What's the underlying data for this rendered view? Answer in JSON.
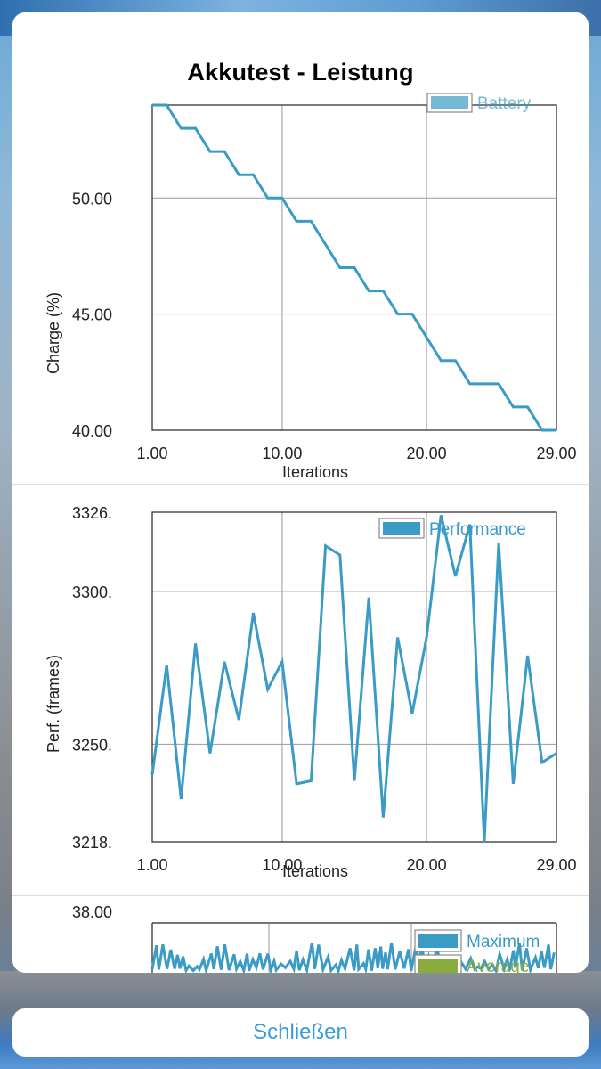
{
  "sheet": {
    "title": "Akkutest - Leistung"
  },
  "close_button": {
    "label": "Schließen"
  },
  "chart_data": [
    {
      "type": "line",
      "xlabel": "Iterations",
      "ylabel": "Charge (%)",
      "xlim": [
        1,
        29
      ],
      "ylim": [
        40,
        54
      ],
      "xticks": [
        "1.00",
        "10.00",
        "20.00",
        "29.00"
      ],
      "yticks": [
        "40.00",
        "45.00",
        "50.00"
      ],
      "legend": "top-right",
      "grid": true,
      "series": [
        {
          "name": "Battery",
          "color": "#3a9bc6",
          "x": [
            1,
            2,
            3,
            4,
            5,
            6,
            7,
            8,
            9,
            10,
            11,
            12,
            13,
            14,
            15,
            16,
            17,
            18,
            19,
            20,
            21,
            22,
            23,
            24,
            25,
            26,
            27,
            28,
            29
          ],
          "values": [
            54,
            54,
            53,
            53,
            52,
            52,
            51,
            51,
            50,
            50,
            49,
            49,
            48,
            47,
            47,
            46,
            46,
            45,
            45,
            44,
            43,
            43,
            42,
            42,
            42,
            41,
            41,
            40,
            40
          ]
        }
      ]
    },
    {
      "type": "line",
      "xlabel": "Iterations",
      "ylabel": "Perf. (frames)",
      "xlim": [
        1,
        29
      ],
      "ylim": [
        3218,
        3326
      ],
      "xticks": [
        "1.00",
        "10.00",
        "20.00",
        "29.00"
      ],
      "yticks": [
        "3218.",
        "3250.",
        "3300.",
        "3326."
      ],
      "legend": "top-right",
      "grid": true,
      "series": [
        {
          "name": "Performance",
          "color": "#3a9bc6",
          "x": [
            1,
            2,
            3,
            4,
            5,
            6,
            7,
            8,
            9,
            10,
            11,
            12,
            13,
            14,
            15,
            16,
            17,
            18,
            19,
            20,
            21,
            22,
            23,
            24,
            25,
            26,
            27,
            28,
            29
          ],
          "values": [
            3240,
            3276,
            3232,
            3283,
            3247,
            3277,
            3258,
            3293,
            3268,
            3277,
            3237,
            3238,
            3315,
            3312,
            3238,
            3298,
            3226,
            3285,
            3260,
            3285,
            3325,
            3305,
            3322,
            3218,
            3316,
            3237,
            3279,
            3244,
            3247
          ]
        }
      ]
    },
    {
      "type": "line",
      "ytick_top": "38.00",
      "legend": "top-right",
      "grid": true,
      "series": [
        {
          "name": "Maximum",
          "color": "#3a9bc6"
        },
        {
          "name": "Average",
          "color": "#8aab3e"
        }
      ]
    }
  ]
}
